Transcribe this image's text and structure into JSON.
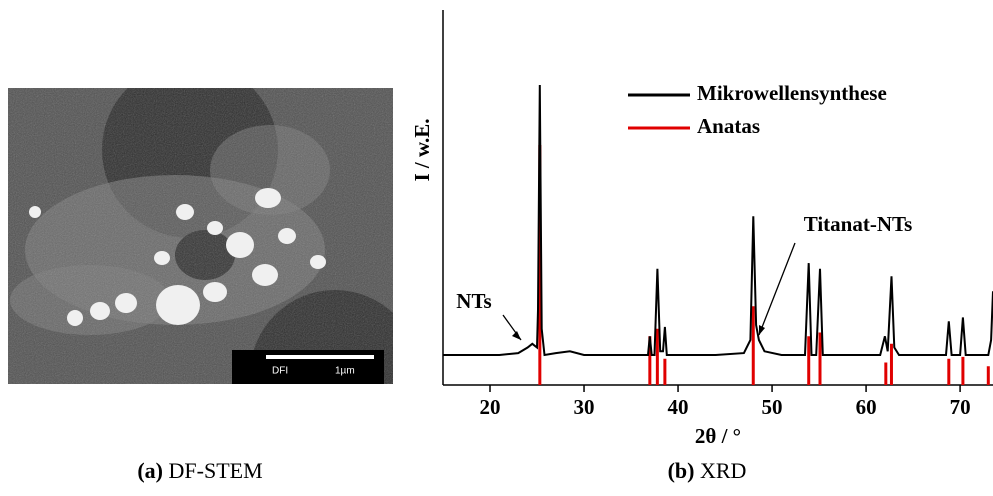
{
  "chart_data": {
    "type": "line",
    "x_label": "2θ / °",
    "y_label": "I / w.E.",
    "xlim": [
      15,
      73.5
    ],
    "xticks": [
      20,
      30,
      40,
      50,
      60,
      70
    ],
    "ylim": [
      0,
      100
    ],
    "legend": "upper right",
    "annotations": [
      "NTs",
      "Titanat-NTs"
    ],
    "series": [
      {
        "name": "Mikrowellensynthese",
        "color": "#000000",
        "style": "line",
        "x": [
          15,
          18,
          21,
          23,
          24,
          24.5,
          25,
          25.1,
          25.3,
          25.5,
          25.8,
          27,
          28.5,
          30,
          33,
          36,
          36.8,
          37.0,
          37.2,
          37.5,
          37.8,
          38.1,
          38.4,
          38.6,
          38.8,
          40,
          44,
          47,
          47.7,
          48.0,
          48.3,
          48.6,
          49.2,
          51,
          53.5,
          53.9,
          54.2,
          54.7,
          55.1,
          55.4,
          58,
          61.5,
          62.0,
          62.3,
          62.7,
          63.0,
          63.5,
          66,
          68.5,
          68.8,
          69.1,
          70.0,
          70.3,
          70.6,
          72.5,
          73.0,
          73.3,
          73.5
        ],
        "values": [
          8,
          8,
          8,
          8.5,
          10,
          11,
          10,
          20,
          80,
          15,
          8,
          8.5,
          9,
          8,
          8,
          8,
          8,
          13,
          8,
          8,
          31,
          9,
          9,
          15.5,
          8,
          8,
          8,
          8.5,
          12,
          45,
          16,
          12,
          9,
          8,
          8,
          32.5,
          8,
          8,
          31,
          8,
          8,
          8,
          13,
          9,
          29,
          10,
          8,
          8,
          8,
          17,
          8,
          8,
          18,
          8,
          8,
          8,
          12,
          25
        ]
      },
      {
        "name": "Anatas",
        "color": "#e00000",
        "style": "stick",
        "x": [
          25.3,
          37.0,
          37.8,
          38.6,
          48.0,
          53.9,
          55.1,
          62.1,
          62.7,
          68.8,
          70.3,
          73.0
        ],
        "values": [
          64,
          13,
          15,
          7,
          21,
          13,
          14,
          6,
          11,
          7,
          7.5,
          5
        ]
      }
    ]
  },
  "image": {
    "scale_left": "DFI",
    "scale_right": "1µm"
  },
  "captions": [
    {
      "label": "(a)",
      "text": "DF-STEM"
    },
    {
      "label": "(b)",
      "text": "XRD"
    }
  ]
}
